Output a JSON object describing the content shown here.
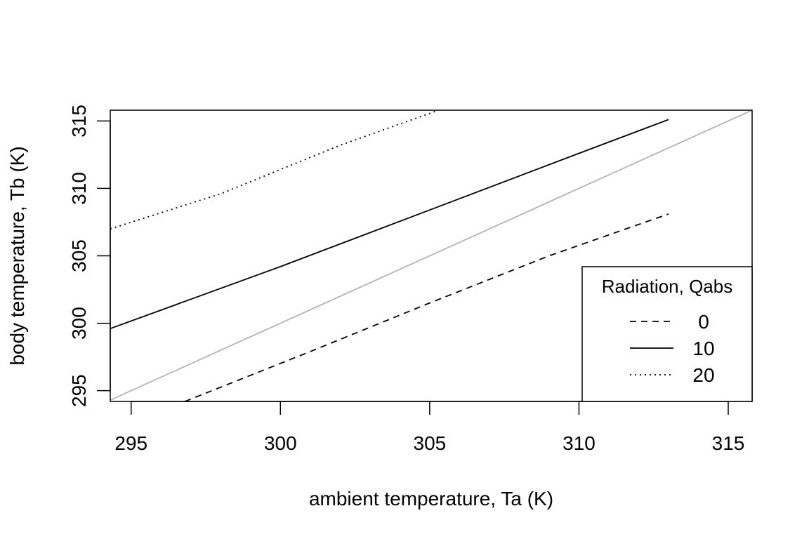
{
  "chart_data": {
    "type": "line",
    "title": "",
    "xlabel": "ambient temperature, Ta (K)",
    "ylabel": "body temperature, Tb (K)",
    "xlim": [
      294.3,
      315.8
    ],
    "ylim": [
      294.2,
      315.8
    ],
    "xticks": [
      295,
      300,
      305,
      310,
      315
    ],
    "yticks": [
      295,
      300,
      305,
      310,
      315
    ],
    "grid": false,
    "legend": {
      "title": "Radiation, Qabs",
      "position": "bottom-right",
      "entries": [
        {
          "label": "0",
          "style": "dashed"
        },
        {
          "label": "10",
          "style": "solid"
        },
        {
          "label": "20",
          "style": "dotted"
        }
      ]
    },
    "series": [
      {
        "name": "0",
        "style": "dashed",
        "color": "#000000",
        "x": [
          296.8,
          301.0,
          305.0,
          309.0,
          313.0
        ],
        "y": [
          294.2,
          297.9,
          301.5,
          305.0,
          308.1
        ]
      },
      {
        "name": "10",
        "style": "solid",
        "color": "#000000",
        "x": [
          294.3,
          300.0,
          305.0,
          310.0,
          313.0
        ],
        "y": [
          299.6,
          304.2,
          308.4,
          312.6,
          315.1
        ]
      },
      {
        "name": "20",
        "style": "dotted",
        "color": "#000000",
        "x": [
          294.3,
          298.0,
          302.0,
          305.3
        ],
        "y": [
          307.0,
          309.6,
          313.2,
          315.8
        ]
      },
      {
        "name": "",
        "style": "solid",
        "color": "#b3b3b3",
        "x": [
          294.3,
          315.8
        ],
        "y": [
          294.3,
          315.8
        ]
      }
    ]
  }
}
